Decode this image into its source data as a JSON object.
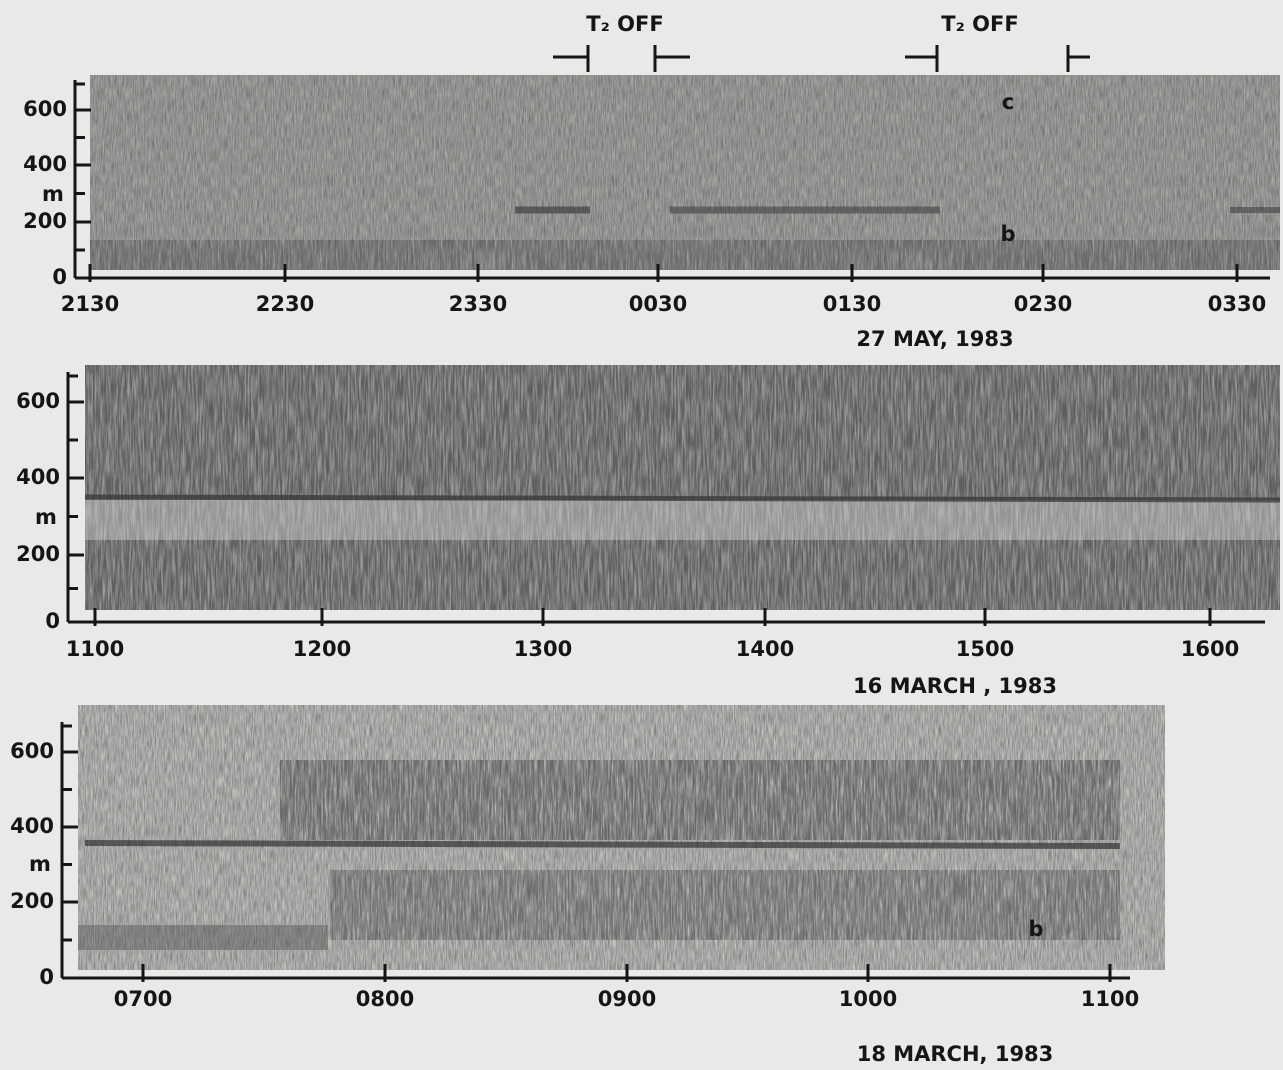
{
  "panels": [
    {
      "y_axis": {
        "ticks": [
          "0",
          "200",
          "400",
          "600"
        ],
        "unit": "m"
      },
      "x_axis": {
        "ticks": [
          "2130",
          "2230",
          "2330",
          "0030",
          "0130",
          "0230",
          "0330"
        ]
      },
      "date": "27 MAY, 1983",
      "annotations": [
        "T₂ OFF",
        "T₂ OFF",
        "c",
        "b"
      ]
    },
    {
      "y_axis": {
        "ticks": [
          "0",
          "200",
          "400",
          "600"
        ],
        "unit": "m"
      },
      "x_axis": {
        "ticks": [
          "1100",
          "1200",
          "1300",
          "1400",
          "1500",
          "1600"
        ]
      },
      "date": "16 MARCH , 1983"
    },
    {
      "y_axis": {
        "ticks": [
          "0",
          "200",
          "400",
          "600"
        ],
        "unit": "m"
      },
      "x_axis": {
        "ticks": [
          "0700",
          "0800",
          "0900",
          "1000",
          "1100"
        ]
      },
      "date": "18 MARCH, 1983",
      "annotations": [
        "b"
      ]
    }
  ]
}
